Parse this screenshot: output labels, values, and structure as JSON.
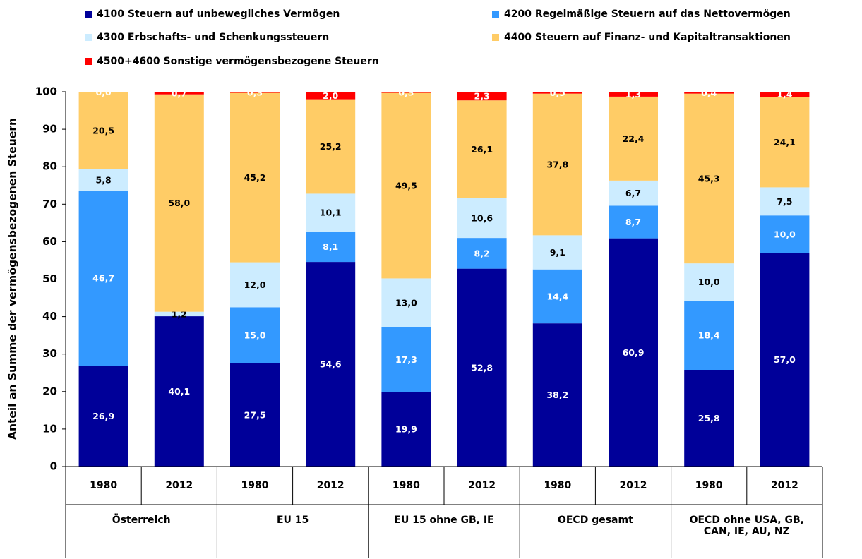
{
  "chart_data": {
    "type": "stacked_bar",
    "y_label": "Anteil an Summe der vermögensbezogenen Steuern",
    "categories": [
      "1980",
      "2012",
      "1980",
      "2012",
      "1980",
      "2012",
      "1980",
      "2012",
      "1980",
      "2012"
    ],
    "groups": [
      "Österreich",
      "EU 15",
      "EU 15 ohne GB, IE",
      "OECD gesamt",
      "OECD ohne USA, GB, CAN, IE, AU, NZ"
    ],
    "series": [
      {
        "name": "4100 Steuern auf unbewegliches Vermögen",
        "color": "#000099",
        "values": [
          26.9,
          40.1,
          27.5,
          54.6,
          19.9,
          52.8,
          38.2,
          60.9,
          25.8,
          57.0
        ],
        "value_labels": [
          "26,9",
          "40,1",
          "27,5",
          "54,6",
          "19,9",
          "52,8",
          "38,2",
          "60,9",
          "25,8",
          "57,0"
        ]
      },
      {
        "name": "4200 Regelmäßige Steuern auf das Nettovermögen",
        "color": "#3399ff",
        "values": [
          46.7,
          null,
          15.0,
          8.1,
          17.3,
          8.2,
          14.4,
          8.7,
          18.4,
          10.0
        ],
        "value_labels": [
          "46,7",
          null,
          "15,0",
          "8,1",
          "17,3",
          "8,2",
          "14,4",
          "8,7",
          "18,4",
          "10,0"
        ]
      },
      {
        "name": "4300 Erbschafts- und Schenkungssteuern",
        "color": "#ccecff",
        "values": [
          5.8,
          1.2,
          12.0,
          10.1,
          13.0,
          10.6,
          9.1,
          6.7,
          10.0,
          7.5
        ],
        "value_labels": [
          "5,8",
          "1,2",
          "12,0",
          "10,1",
          "13,0",
          "10,6",
          "9,1",
          "6,7",
          "10,0",
          "7,5"
        ]
      },
      {
        "name": "4400 Steuern auf Finanz- und Kapitaltransaktionen",
        "color": "#ffcc66",
        "values": [
          20.5,
          58.0,
          45.2,
          25.2,
          49.5,
          26.1,
          37.8,
          22.4,
          45.3,
          24.1
        ],
        "value_labels": [
          "20,5",
          "58,0",
          "45,2",
          "25,2",
          "49,5",
          "26,1",
          "37,8",
          "22,4",
          "45,3",
          "24,1"
        ]
      },
      {
        "name": "4500+4600 Sonstige vermögensbezogene Steuern",
        "color": "#ff0000",
        "values": [
          0.0,
          0.7,
          0.3,
          2.0,
          0.3,
          2.3,
          0.5,
          1.3,
          0.4,
          1.4
        ],
        "value_labels": [
          "0,0",
          "0,7",
          "0,3",
          "2,0",
          "0,3",
          "2,3",
          "0,5",
          "1,3",
          "0,4",
          "1,4"
        ]
      }
    ],
    "ylim": [
      0,
      100
    ],
    "yticks": [
      0,
      10,
      20,
      30,
      40,
      50,
      60,
      70,
      80,
      90,
      100
    ]
  }
}
